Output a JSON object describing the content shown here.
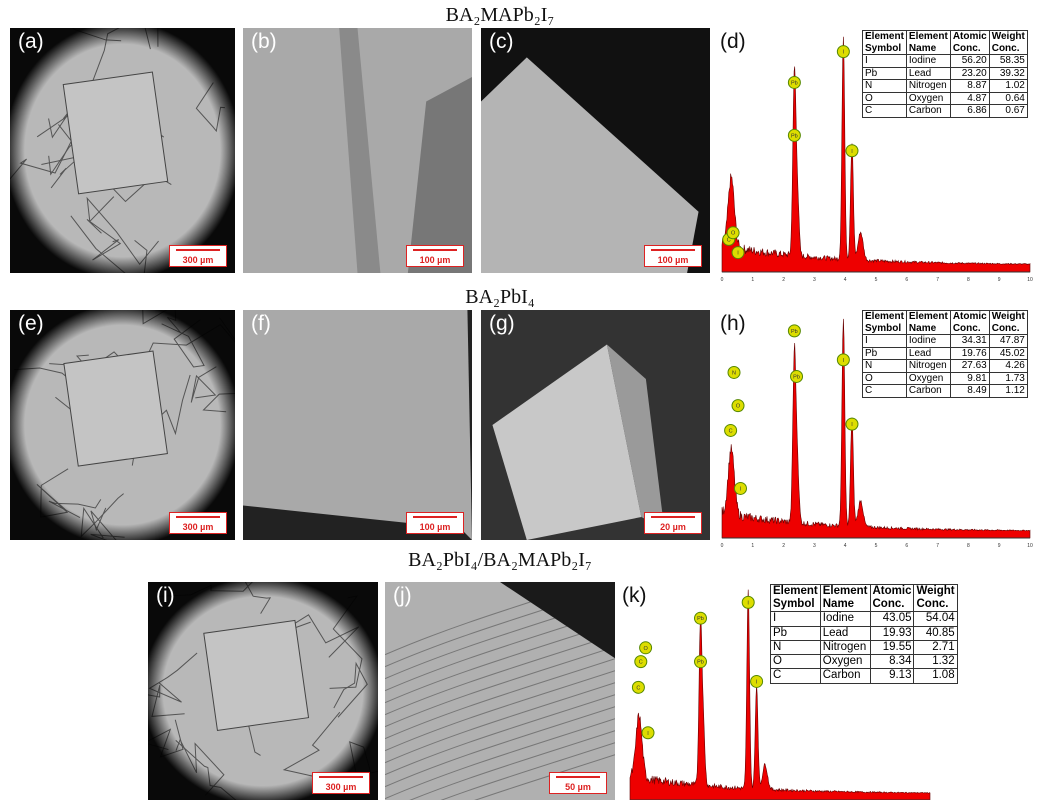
{
  "rows": [
    {
      "title": "BA₂MAPb₂I₇",
      "images": [
        {
          "label": "(a)",
          "scale_bar": "300 µm"
        },
        {
          "label": "(b)",
          "scale_bar": "100 µm"
        },
        {
          "label": "(c)",
          "scale_bar": "100 µm"
        }
      ],
      "spectrum": {
        "label": "(d)",
        "peaks": [
          "C",
          "O",
          "I",
          "Pb",
          "Pb",
          "I",
          "I"
        ],
        "axis_ticks": [
          "0",
          "1",
          "2",
          "3",
          "4",
          "5",
          "6",
          "7",
          "8",
          "9",
          "10"
        ],
        "table": {
          "header": [
            "Element Symbol",
            "Element Name",
            "Atomic Conc.",
            "Weight Conc."
          ],
          "rows": [
            [
              "I",
              "Iodine",
              "56.20",
              "58.35"
            ],
            [
              "Pb",
              "Lead",
              "23.20",
              "39.32"
            ],
            [
              "N",
              "Nitrogen",
              "8.87",
              "1.02"
            ],
            [
              "O",
              "Oxygen",
              "4.87",
              "0.64"
            ],
            [
              "C",
              "Carbon",
              "6.86",
              "0.67"
            ]
          ]
        }
      }
    },
    {
      "title": "BA₂PbI₄",
      "images": [
        {
          "label": "(e)",
          "scale_bar": "300 µm"
        },
        {
          "label": "(f)",
          "scale_bar": "100 µm"
        },
        {
          "label": "(g)",
          "scale_bar": "20 µm"
        }
      ],
      "spectrum": {
        "label": "(h)",
        "peaks": [
          "N",
          "O",
          "C",
          "I",
          "Pb",
          "Pb",
          "I",
          "I"
        ],
        "axis_ticks": [
          "0",
          "1",
          "2",
          "3",
          "4",
          "5",
          "6",
          "7",
          "8",
          "9",
          "10"
        ],
        "table": {
          "header": [
            "Element Symbol",
            "Element Name",
            "Atomic Conc.",
            "Weight Conc."
          ],
          "rows": [
            [
              "I",
              "Iodine",
              "34.31",
              "47.87"
            ],
            [
              "Pb",
              "Lead",
              "19.76",
              "45.02"
            ],
            [
              "N",
              "Nitrogen",
              "27.63",
              "4.26"
            ],
            [
              "O",
              "Oxygen",
              "9.81",
              "1.73"
            ],
            [
              "C",
              "Carbon",
              "8.49",
              "1.12"
            ]
          ]
        }
      }
    },
    {
      "title": "BA₂PbI₄/BA₂MAPb₂I₇",
      "images": [
        {
          "label": "(i)",
          "scale_bar": "300 µm"
        },
        {
          "label": "(j)",
          "scale_bar": "50 µm"
        }
      ],
      "spectrum": {
        "label": "(k)",
        "peaks": [
          "O",
          "C",
          "C",
          "I",
          "Pb",
          "Pb",
          "I",
          "I"
        ],
        "table": {
          "header": [
            "Element Symbol",
            "Element Name",
            "Atomic Conc.",
            "Weight Conc."
          ],
          "rows": [
            [
              "I",
              "Iodine",
              "43.05",
              "54.04"
            ],
            [
              "Pb",
              "Lead",
              "19.93",
              "40.85"
            ],
            [
              "N",
              "Nitrogen",
              "19.55",
              "2.71"
            ],
            [
              "O",
              "Oxygen",
              "8.34",
              "1.32"
            ],
            [
              "C",
              "Carbon",
              "9.13",
              "1.08"
            ]
          ]
        }
      }
    }
  ]
}
